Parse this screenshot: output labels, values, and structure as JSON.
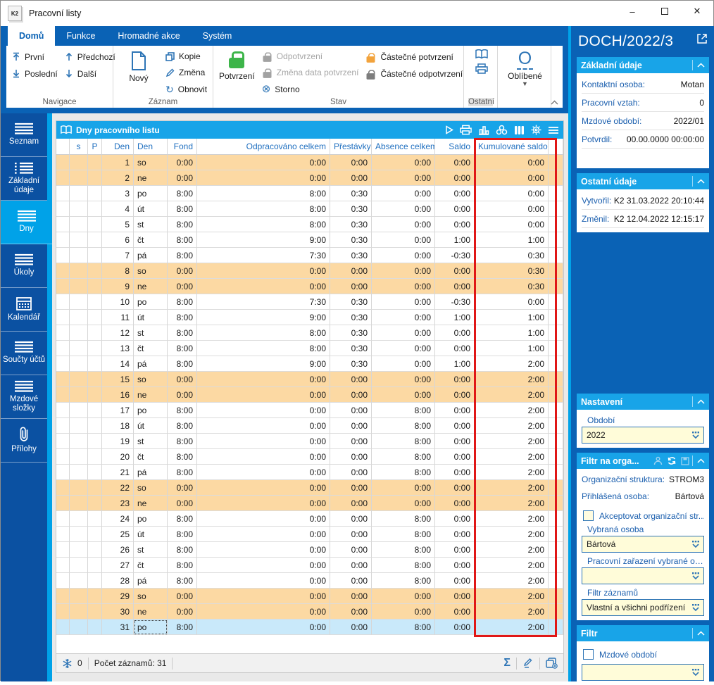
{
  "window": {
    "title": "Pracovní listy",
    "logo": "K2"
  },
  "ribbon": {
    "tabs": [
      {
        "label": "Domů",
        "active": true
      },
      {
        "label": "Funkce",
        "active": false
      },
      {
        "label": "Hromadné akce",
        "active": false
      },
      {
        "label": "Systém",
        "active": false
      }
    ],
    "groups": {
      "navigace": {
        "caption": "Navigace",
        "first": "První",
        "last": "Poslední",
        "prev": "Předchozí",
        "next": "Další"
      },
      "zaznam": {
        "caption": "Záznam",
        "new": "Nový",
        "copy": "Kopie",
        "change": "Změna",
        "refresh": "Obnovit"
      },
      "stav": {
        "caption": "Stav",
        "confirm": "Potvrzení",
        "unconfirm": "Odpotvrzení",
        "change_date": "Změna data potvrzení",
        "storno": "Storno",
        "partial_confirm": "Částečné potvrzení",
        "partial_unconfirm": "Částečné odpotvrzení"
      },
      "ostatni": {
        "caption": "Ostatní"
      },
      "oblibene": {
        "caption": "Oblíbené"
      }
    }
  },
  "sidebar": {
    "items": [
      {
        "label": "Seznam",
        "icon": "list",
        "active": false
      },
      {
        "label": "Základní údaje",
        "icon": "dotted-list",
        "active": false
      },
      {
        "label": "Dny",
        "icon": "list",
        "active": true
      },
      {
        "label": "Úkoly",
        "icon": "list",
        "active": false
      },
      {
        "label": "Kalendář",
        "icon": "calendar",
        "active": false
      },
      {
        "label": "Součty účtů",
        "icon": "list",
        "active": false
      },
      {
        "label": "Mzdové složky",
        "icon": "list",
        "active": false
      },
      {
        "label": "Přílohy",
        "icon": "paperclip",
        "active": false
      }
    ]
  },
  "table": {
    "title": "Dny pracovního listu",
    "toolbar_icons": [
      "play",
      "printer",
      "bar-chart",
      "clover",
      "columns",
      "gear",
      "menu"
    ],
    "columns": [
      "",
      "s",
      "P",
      "Den",
      "Den",
      "Fond",
      "Odpracováno celkem",
      "Přestávky",
      "Absence celkem",
      "Saldo",
      "Kumulované saldo"
    ],
    "rows": [
      {
        "den": "1",
        "day": "so",
        "fond": "0:00",
        "odpracovano": "0:00",
        "prestavky": "0:00",
        "absence": "0:00",
        "saldo": "0:00",
        "kumulovane": "0:00",
        "weekend": true
      },
      {
        "den": "2",
        "day": "ne",
        "fond": "0:00",
        "odpracovano": "0:00",
        "prestavky": "0:00",
        "absence": "0:00",
        "saldo": "0:00",
        "kumulovane": "0:00",
        "weekend": true
      },
      {
        "den": "3",
        "day": "po",
        "fond": "8:00",
        "odpracovano": "8:00",
        "prestavky": "0:30",
        "absence": "0:00",
        "saldo": "0:00",
        "kumulovane": "0:00"
      },
      {
        "den": "4",
        "day": "út",
        "fond": "8:00",
        "odpracovano": "8:00",
        "prestavky": "0:30",
        "absence": "0:00",
        "saldo": "0:00",
        "kumulovane": "0:00"
      },
      {
        "den": "5",
        "day": "st",
        "fond": "8:00",
        "odpracovano": "8:00",
        "prestavky": "0:30",
        "absence": "0:00",
        "saldo": "0:00",
        "kumulovane": "0:00"
      },
      {
        "den": "6",
        "day": "čt",
        "fond": "8:00",
        "odpracovano": "9:00",
        "prestavky": "0:30",
        "absence": "0:00",
        "saldo": "1:00",
        "kumulovane": "1:00"
      },
      {
        "den": "7",
        "day": "pá",
        "fond": "8:00",
        "odpracovano": "7:30",
        "prestavky": "0:30",
        "absence": "0:00",
        "saldo": "-0:30",
        "kumulovane": "0:30"
      },
      {
        "den": "8",
        "day": "so",
        "fond": "0:00",
        "odpracovano": "0:00",
        "prestavky": "0:00",
        "absence": "0:00",
        "saldo": "0:00",
        "kumulovane": "0:30",
        "weekend": true
      },
      {
        "den": "9",
        "day": "ne",
        "fond": "0:00",
        "odpracovano": "0:00",
        "prestavky": "0:00",
        "absence": "0:00",
        "saldo": "0:00",
        "kumulovane": "0:30",
        "weekend": true
      },
      {
        "den": "10",
        "day": "po",
        "fond": "8:00",
        "odpracovano": "7:30",
        "prestavky": "0:30",
        "absence": "0:00",
        "saldo": "-0:30",
        "kumulovane": "0:00"
      },
      {
        "den": "11",
        "day": "út",
        "fond": "8:00",
        "odpracovano": "9:00",
        "prestavky": "0:30",
        "absence": "0:00",
        "saldo": "1:00",
        "kumulovane": "1:00"
      },
      {
        "den": "12",
        "day": "st",
        "fond": "8:00",
        "odpracovano": "8:00",
        "prestavky": "0:30",
        "absence": "0:00",
        "saldo": "0:00",
        "kumulovane": "1:00"
      },
      {
        "den": "13",
        "day": "čt",
        "fond": "8:00",
        "odpracovano": "8:00",
        "prestavky": "0:30",
        "absence": "0:00",
        "saldo": "0:00",
        "kumulovane": "1:00"
      },
      {
        "den": "14",
        "day": "pá",
        "fond": "8:00",
        "odpracovano": "9:00",
        "prestavky": "0:30",
        "absence": "0:00",
        "saldo": "1:00",
        "kumulovane": "2:00"
      },
      {
        "den": "15",
        "day": "so",
        "fond": "0:00",
        "odpracovano": "0:00",
        "prestavky": "0:00",
        "absence": "0:00",
        "saldo": "0:00",
        "kumulovane": "2:00",
        "weekend": true
      },
      {
        "den": "16",
        "day": "ne",
        "fond": "0:00",
        "odpracovano": "0:00",
        "prestavky": "0:00",
        "absence": "0:00",
        "saldo": "0:00",
        "kumulovane": "2:00",
        "weekend": true
      },
      {
        "den": "17",
        "day": "po",
        "fond": "8:00",
        "odpracovano": "0:00",
        "prestavky": "0:00",
        "absence": "8:00",
        "saldo": "0:00",
        "kumulovane": "2:00"
      },
      {
        "den": "18",
        "day": "út",
        "fond": "8:00",
        "odpracovano": "0:00",
        "prestavky": "0:00",
        "absence": "8:00",
        "saldo": "0:00",
        "kumulovane": "2:00"
      },
      {
        "den": "19",
        "day": "st",
        "fond": "8:00",
        "odpracovano": "0:00",
        "prestavky": "0:00",
        "absence": "8:00",
        "saldo": "0:00",
        "kumulovane": "2:00"
      },
      {
        "den": "20",
        "day": "čt",
        "fond": "8:00",
        "odpracovano": "0:00",
        "prestavky": "0:00",
        "absence": "8:00",
        "saldo": "0:00",
        "kumulovane": "2:00"
      },
      {
        "den": "21",
        "day": "pá",
        "fond": "8:00",
        "odpracovano": "0:00",
        "prestavky": "0:00",
        "absence": "8:00",
        "saldo": "0:00",
        "kumulovane": "2:00"
      },
      {
        "den": "22",
        "day": "so",
        "fond": "0:00",
        "odpracovano": "0:00",
        "prestavky": "0:00",
        "absence": "0:00",
        "saldo": "0:00",
        "kumulovane": "2:00",
        "weekend": true
      },
      {
        "den": "23",
        "day": "ne",
        "fond": "0:00",
        "odpracovano": "0:00",
        "prestavky": "0:00",
        "absence": "0:00",
        "saldo": "0:00",
        "kumulovane": "2:00",
        "weekend": true
      },
      {
        "den": "24",
        "day": "po",
        "fond": "8:00",
        "odpracovano": "0:00",
        "prestavky": "0:00",
        "absence": "8:00",
        "saldo": "0:00",
        "kumulovane": "2:00"
      },
      {
        "den": "25",
        "day": "út",
        "fond": "8:00",
        "odpracovano": "0:00",
        "prestavky": "0:00",
        "absence": "8:00",
        "saldo": "0:00",
        "kumulovane": "2:00"
      },
      {
        "den": "26",
        "day": "st",
        "fond": "8:00",
        "odpracovano": "0:00",
        "prestavky": "0:00",
        "absence": "8:00",
        "saldo": "0:00",
        "kumulovane": "2:00"
      },
      {
        "den": "27",
        "day": "čt",
        "fond": "8:00",
        "odpracovano": "0:00",
        "prestavky": "0:00",
        "absence": "8:00",
        "saldo": "0:00",
        "kumulovane": "2:00"
      },
      {
        "den": "28",
        "day": "pá",
        "fond": "8:00",
        "odpracovano": "0:00",
        "prestavky": "0:00",
        "absence": "8:00",
        "saldo": "0:00",
        "kumulovane": "2:00"
      },
      {
        "den": "29",
        "day": "so",
        "fond": "0:00",
        "odpracovano": "0:00",
        "prestavky": "0:00",
        "absence": "0:00",
        "saldo": "0:00",
        "kumulovane": "2:00",
        "weekend": true
      },
      {
        "den": "30",
        "day": "ne",
        "fond": "0:00",
        "odpracovano": "0:00",
        "prestavky": "0:00",
        "absence": "0:00",
        "saldo": "0:00",
        "kumulovane": "2:00",
        "weekend": true
      },
      {
        "den": "31",
        "day": "po",
        "fond": "8:00",
        "odpracovano": "0:00",
        "prestavky": "0:00",
        "absence": "8:00",
        "saldo": "0:00",
        "kumulovane": "2:00",
        "selected": true
      }
    ],
    "footer": {
      "frozen_count": "0",
      "records_label": "Počet záznamů: 31"
    }
  },
  "right_panel": {
    "doc_title": "DOCH/2022/3",
    "zakladni_udaje": {
      "title": "Základní údaje",
      "rows": [
        {
          "label": "Kontaktní osoba:",
          "value": "Motan"
        },
        {
          "label": "Pracovní vztah:",
          "value": "0"
        },
        {
          "label": "Mzdové období:",
          "value": "2022/01"
        },
        {
          "label": "Potvrdil:",
          "value": "00.00.0000 00:00:00"
        }
      ]
    },
    "ostatni_udaje": {
      "title": "Ostatní údaje",
      "rows": [
        {
          "label": "Vytvořil:",
          "value": "K2 31.03.2022 20:10:44"
        },
        {
          "label": "Změnil:",
          "value": "K2 12.04.2022 12:15:17"
        }
      ]
    },
    "nastaveni": {
      "title": "Nastavení",
      "obdobi_label": "Období",
      "obdobi_value": "2022"
    },
    "filtr_org": {
      "title": "Filtr na orga...",
      "rows": [
        {
          "label": "Organizační struktura:",
          "value": "STROM3"
        },
        {
          "label": "Přihlášená osoba:",
          "value": "Bártová"
        }
      ],
      "accept_checkbox_label": "Akceptovat organizační str...",
      "vybrana_osoba_label": "Vybraná osoba",
      "vybrana_osoba_value": "Bártová",
      "zarazeni_label": "Pracovní zařazení vybrané os...",
      "zarazeni_value": "",
      "filtr_zaznamu_label": "Filtr záznamů",
      "filtr_zaznamu_value": "Vlastní a všichni podřízení"
    },
    "filtr": {
      "title": "Filtr",
      "checkbox_label": "Mzdové období",
      "combo_value": ""
    }
  },
  "colors": {
    "ribbon_blue": "#0a62b5",
    "sidebar_blue": "#0b51a2",
    "accent_cyan": "#00a2e8",
    "header_cyan": "#18a4e8",
    "weekend_orange": "#fcd9a3",
    "selected_row": "#c9e9fa",
    "combo_yellow": "#fffcd9",
    "highlight_red": "#e01717",
    "lock_green": "#3db54a",
    "lock_orange": "#f2a33c"
  }
}
